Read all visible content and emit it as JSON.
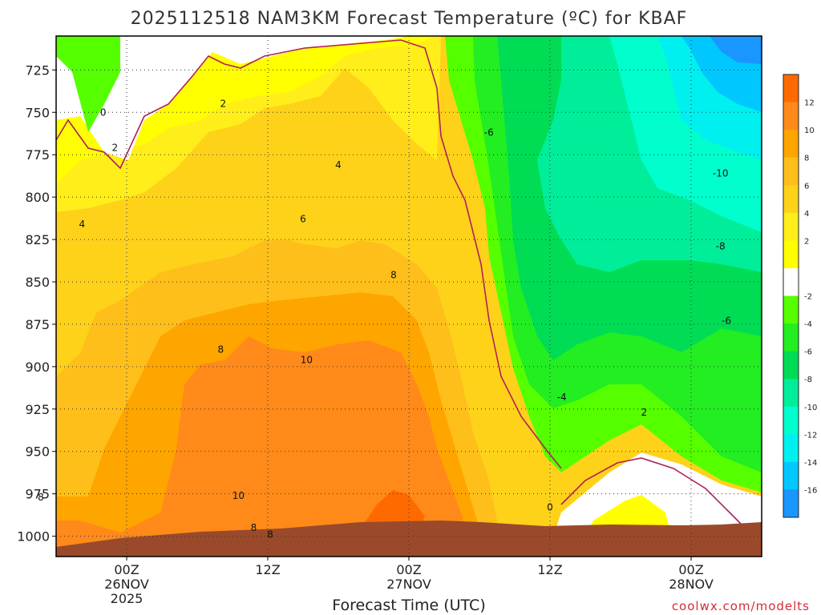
{
  "chart_data": {
    "type": "heatmap",
    "title": "2025112518 NAM3KM Forecast Temperature (ºC) for KBAF",
    "xlabel": "Forecast Time (UTC)",
    "ylabel": "",
    "y_ticks": [
      725,
      750,
      775,
      800,
      825,
      850,
      875,
      900,
      925,
      950,
      975,
      1000
    ],
    "ylim": [
      1012,
      705
    ],
    "x_unit": "hours since 2025-11-25 18Z",
    "xlim": [
      0,
      60
    ],
    "x_ticks": [
      {
        "x": 6,
        "lines": [
          "00Z",
          "26NOV",
          "2025"
        ]
      },
      {
        "x": 18,
        "lines": [
          "12Z",
          "",
          ""
        ]
      },
      {
        "x": 30,
        "lines": [
          "00Z",
          "27NOV",
          ""
        ]
      },
      {
        "x": 42,
        "lines": [
          "12Z",
          "",
          ""
        ]
      },
      {
        "x": 54,
        "lines": [
          "00Z",
          "28NOV",
          ""
        ]
      }
    ],
    "grid": "dotted",
    "colorbar": {
      "placement": "right",
      "levels": [
        12,
        10,
        8,
        6,
        4,
        2,
        -2,
        -4,
        -6,
        -8,
        -10,
        -12,
        -14,
        -16
      ],
      "colors": [
        "#ff6a00",
        "#ff8a1a",
        "#ffa500",
        "#ffbf1a",
        "#ffd21a",
        "#ffee1a",
        "#ffff00",
        "#ffffff",
        "#55ff00",
        "#22ee22",
        "#00dd55",
        "#00ee99",
        "#00ffcc",
        "#00f0f0",
        "#00c8ff",
        "#1a96ff"
      ]
    },
    "contour_labels": [
      {
        "t": 4,
        "p": 750,
        "text": "0"
      },
      {
        "t": 5,
        "p": 771,
        "text": "2"
      },
      {
        "t": 2.2,
        "p": 816,
        "text": "4"
      },
      {
        "t": 14.2,
        "p": 745,
        "text": "2"
      },
      {
        "t": 24,
        "p": 781,
        "text": "4"
      },
      {
        "t": 21,
        "p": 813,
        "text": "6"
      },
      {
        "t": 28.7,
        "p": 846,
        "text": "8"
      },
      {
        "t": 14,
        "p": 890,
        "text": "8"
      },
      {
        "t": 21.3,
        "p": 896,
        "text": "10"
      },
      {
        "t": 15.5,
        "p": 976,
        "text": "10"
      },
      {
        "t": -1.3,
        "p": 977,
        "text": "8"
      },
      {
        "t": 16.8,
        "p": 995,
        "text": "8"
      },
      {
        "t": 18.2,
        "p": 999,
        "text": "8"
      },
      {
        "t": 36.8,
        "p": 762,
        "text": "-6"
      },
      {
        "t": 56.5,
        "p": 786,
        "text": "-10"
      },
      {
        "t": 56.5,
        "p": 829,
        "text": "-8"
      },
      {
        "t": 57,
        "p": 873,
        "text": "-6"
      },
      {
        "t": 43,
        "p": 918,
        "text": "-4"
      },
      {
        "t": 50,
        "p": 927,
        "text": "2"
      },
      {
        "t": 42,
        "p": 983,
        "text": "0"
      }
    ]
  },
  "credit": "coolwx.com/modelts"
}
